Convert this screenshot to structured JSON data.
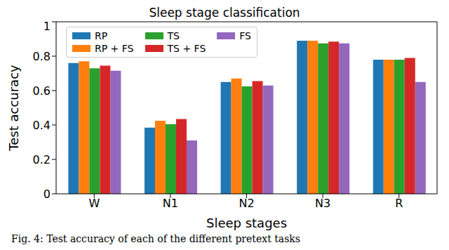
{
  "chart_data": {
    "type": "bar",
    "title": "Sleep stage classification",
    "x_label": "Sleep stages",
    "y_label": "Test accuracy",
    "caption": "Fig. 4: Test accuracy of each of the different pretext tasks",
    "categories": [
      "W",
      "N1",
      "N2",
      "N3",
      "R"
    ],
    "series": [
      {
        "name": "RP",
        "color": "#1f77b4",
        "values": [
          0.76,
          0.385,
          0.65,
          0.89,
          0.78
        ]
      },
      {
        "name": "RP + FS",
        "color": "#ff7f0e",
        "values": [
          0.77,
          0.425,
          0.67,
          0.89,
          0.78
        ]
      },
      {
        "name": "TS",
        "color": "#2ca02c",
        "values": [
          0.73,
          0.405,
          0.625,
          0.875,
          0.78
        ]
      },
      {
        "name": "TS + FS",
        "color": "#d62728",
        "values": [
          0.745,
          0.435,
          0.655,
          0.885,
          0.79
        ]
      },
      {
        "name": "FS",
        "color": "#9467bd",
        "values": [
          0.715,
          0.31,
          0.63,
          0.875,
          0.65
        ]
      }
    ],
    "ylim": [
      0,
      1
    ],
    "yticks": [
      0,
      0.2,
      0.4,
      0.6,
      0.8,
      1
    ],
    "legend": "upper left",
    "grid": false
  }
}
